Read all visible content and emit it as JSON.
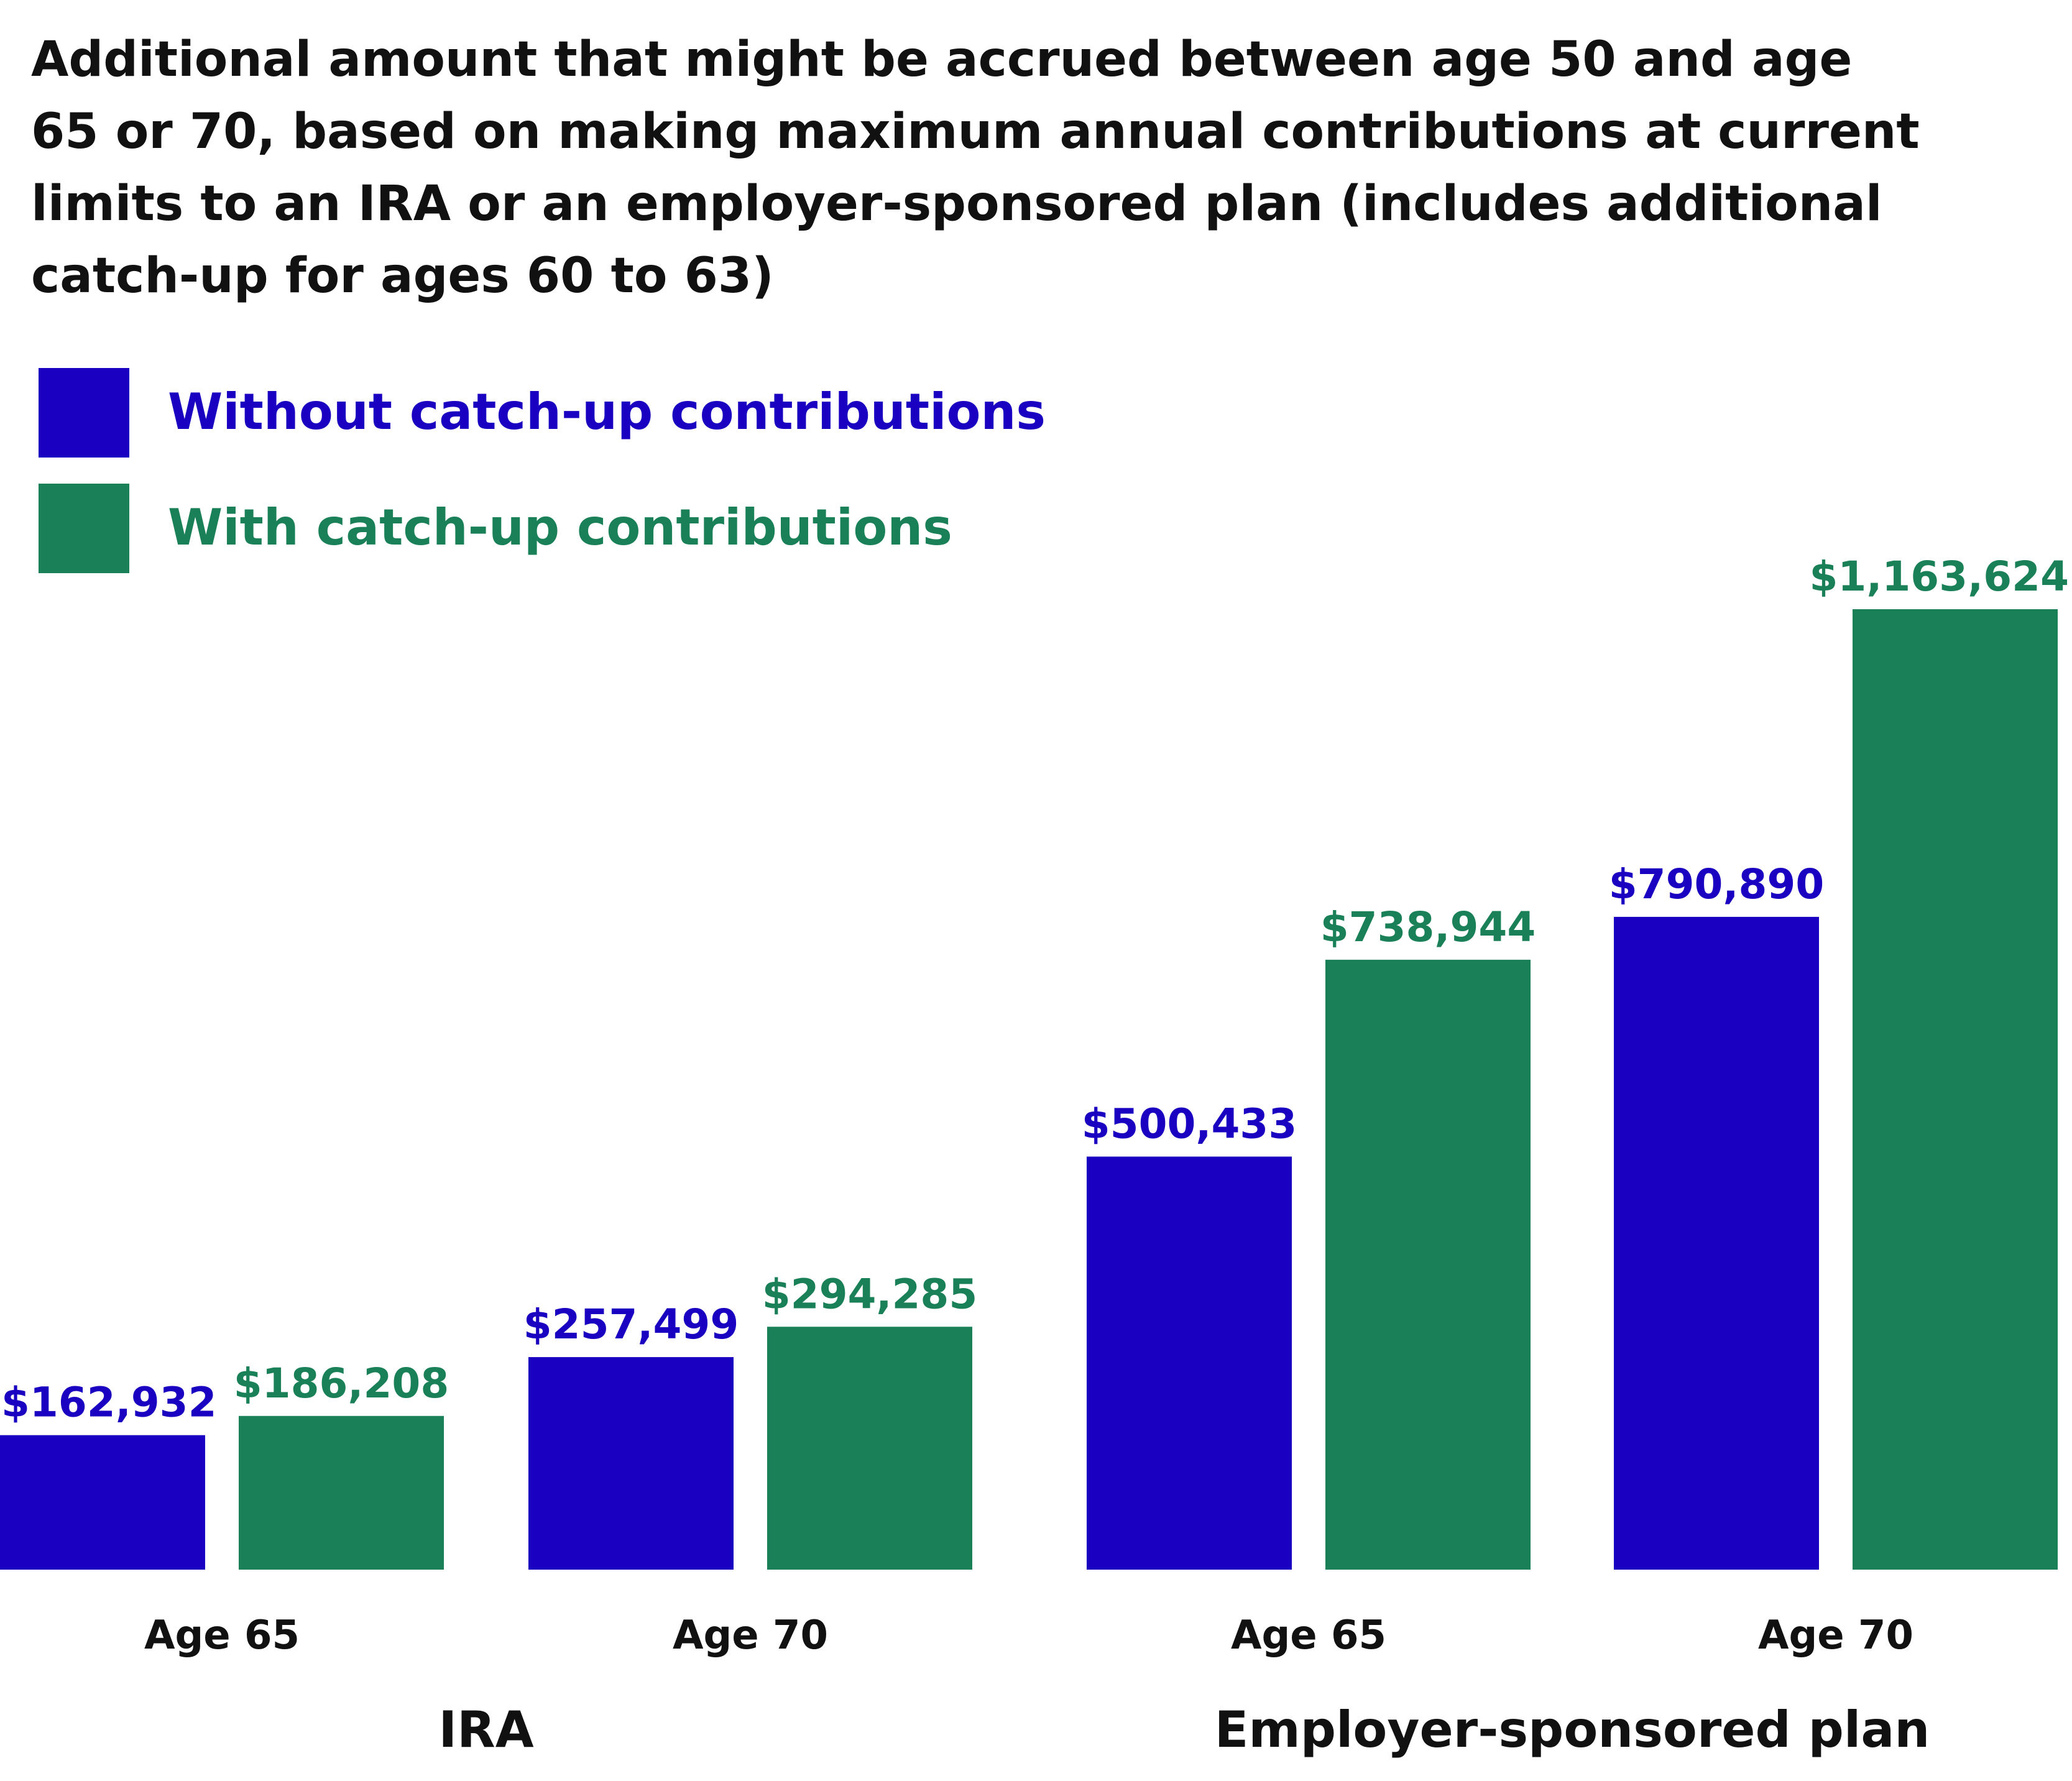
{
  "chart_data": {
    "type": "bar",
    "title_lines": [
      "Additional amount that might be accrued between age 50 and age",
      "65 or 70, based on making maximum annual contributions at current",
      "limits to an IRA or an employer-sponsored plan (includes additional",
      "catch-up for ages 60 to 63)"
    ],
    "legend_placement": "top-left",
    "groups": [
      {
        "label": "IRA",
        "categories": [
          {
            "label": "Age 65",
            "values": [
              162932,
              186208
            ],
            "value_labels": [
              "$162,932",
              "$186,208"
            ]
          },
          {
            "label": "Age 70",
            "values": [
              257499,
              294285
            ],
            "value_labels": [
              "$257,499",
              "$294,285"
            ]
          }
        ]
      },
      {
        "label": "Employer-sponsored plan",
        "categories": [
          {
            "label": "Age 65",
            "values": [
              500433,
              738944
            ],
            "value_labels": [
              "$500,433",
              "$738,944"
            ]
          },
          {
            "label": "Age 70",
            "values": [
              790890,
              1163624
            ],
            "value_labels": [
              "$790,890",
              "$1,163,624"
            ]
          }
        ]
      }
    ],
    "series": [
      {
        "name": "Without catch-up contributions",
        "color": "#1a00c0"
      },
      {
        "name": "With catch-up contributions",
        "color": "#1a8058"
      }
    ],
    "ylim": [
      0,
      1163624
    ],
    "grid": false
  }
}
